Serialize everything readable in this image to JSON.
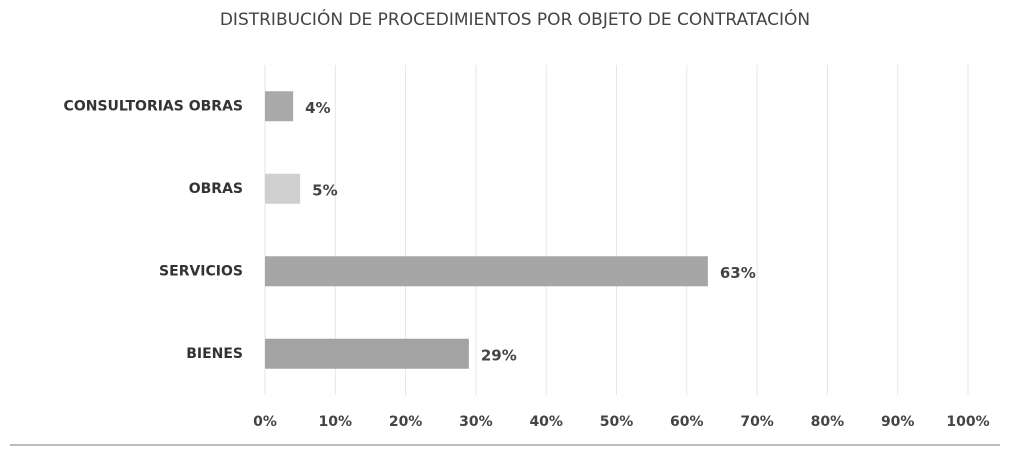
{
  "chart_data": {
    "type": "hbar",
    "title": "DISTRIBUCIÓN DE PROCEDIMIENTOS POR OBJETO DE CONTRATACIÓN",
    "categories": [
      "CONSULTORIAS OBRAS",
      "OBRAS",
      "SERVICIOS",
      "BIENES"
    ],
    "values": [
      4,
      5,
      63,
      29
    ],
    "value_labels": [
      "4%",
      "5%",
      "63%",
      "29%"
    ],
    "colors": [
      "#a9a9a9",
      "#cfcfcf",
      "#a6a6a6",
      "#a3a3a3"
    ],
    "xlim": [
      0,
      100
    ],
    "xticks": [
      {
        "value": 0,
        "label": "0%"
      },
      {
        "value": 10,
        "label": "10%"
      },
      {
        "value": 20,
        "label": "20%"
      },
      {
        "value": 30,
        "label": "30%"
      },
      {
        "value": 40,
        "label": "40%"
      },
      {
        "value": 50,
        "label": "50%"
      },
      {
        "value": 60,
        "label": "60%"
      },
      {
        "value": 70,
        "label": "70%"
      },
      {
        "value": 80,
        "label": "80%"
      },
      {
        "value": 90,
        "label": "90%"
      },
      {
        "value": 100,
        "label": "100%"
      }
    ],
    "grid": true
  }
}
